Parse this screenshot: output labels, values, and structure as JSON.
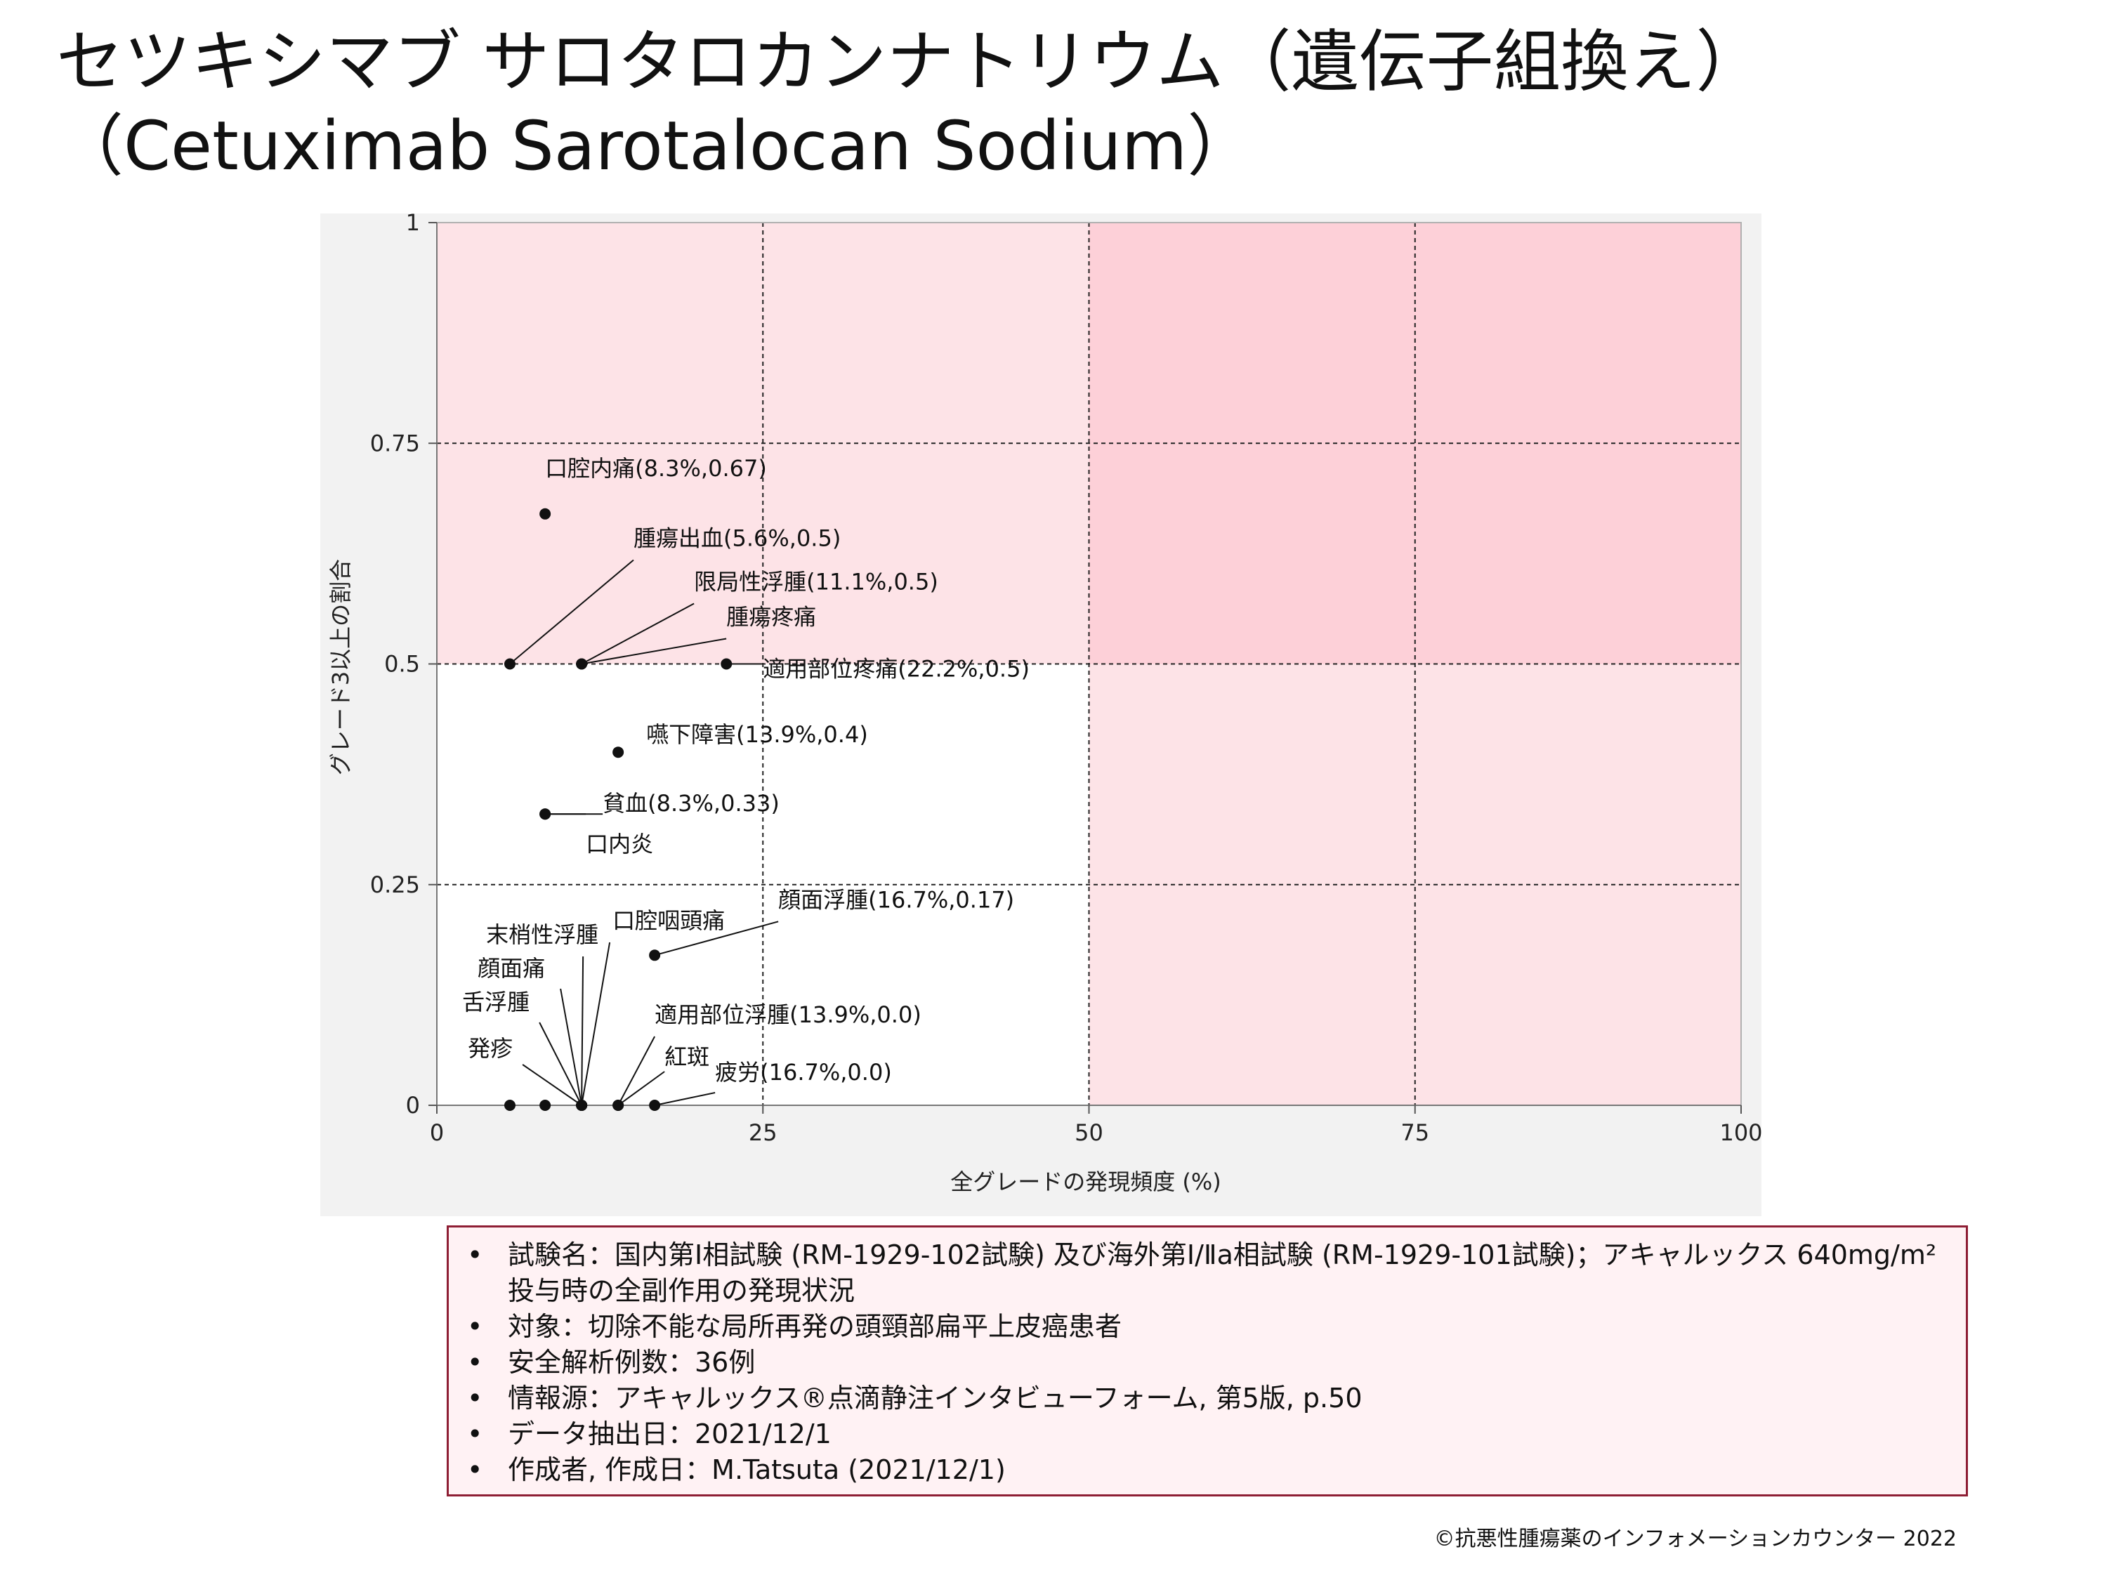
{
  "title": {
    "line1": "セツキシマブ サロタロカンナトリウム（遺伝子組換え）",
    "line2": "（Cetuximab Sarotalocan Sodium）"
  },
  "colors": {
    "plot_background": "#ffffff",
    "chart_panel": "#f2f2f2",
    "zone_light": "#fde3e7",
    "zone_dark": "#fdd0d8",
    "point": "#111111",
    "box_border": "#8e1e34",
    "box_fill": "#fff2f4"
  },
  "chart_data": {
    "type": "scatter",
    "xlabel": "全グレードの発現頻度 (%)",
    "ylabel": "グレード3以上の割合",
    "xlim": [
      0,
      100
    ],
    "ylim": [
      0,
      1
    ],
    "x_ticks": [
      {
        "value": 0,
        "label": "0"
      },
      {
        "value": 25,
        "label": "25"
      },
      {
        "value": 50,
        "label": "50"
      },
      {
        "value": 75,
        "label": "75"
      },
      {
        "value": 100,
        "label": "100"
      }
    ],
    "y_ticks": [
      {
        "value": 0,
        "label": "0"
      },
      {
        "value": 0.25,
        "label": "0.25"
      },
      {
        "value": 0.5,
        "label": "0.5"
      },
      {
        "value": 0.75,
        "label": "0.75"
      },
      {
        "value": 1,
        "label": "1"
      }
    ],
    "grid": "dashed at 25/50/75 on both axes",
    "zones": [
      {
        "x": [
          0,
          50
        ],
        "y": [
          0.5,
          1
        ],
        "color_key": "zone_light"
      },
      {
        "x": [
          50,
          100
        ],
        "y": [
          0,
          0.5
        ],
        "color_key": "zone_light"
      },
      {
        "x": [
          50,
          100
        ],
        "y": [
          0.5,
          1
        ],
        "color_key": "zone_dark"
      }
    ],
    "points": [
      {
        "name": "口腔内痛",
        "label": "口腔内痛(8.3%,0.67)",
        "x": 8.3,
        "y": 0.67
      },
      {
        "name": "腫瘍出血",
        "label": "腫瘍出血(5.6%,0.5)",
        "x": 5.6,
        "y": 0.5
      },
      {
        "name": "限局性浮腫",
        "label": "限局性浮腫(11.1%,0.5)",
        "x": 11.1,
        "y": 0.5
      },
      {
        "name": "腫瘍疼痛",
        "label": "腫瘍疼痛",
        "x": 11.1,
        "y": 0.5
      },
      {
        "name": "適用部位疼痛",
        "label": "適用部位疼痛(22.2%,0.5)",
        "x": 22.2,
        "y": 0.5
      },
      {
        "name": "嚥下障害",
        "label": "嚥下障害(13.9%,0.4)",
        "x": 13.9,
        "y": 0.4
      },
      {
        "name": "貧血",
        "label": "貧血(8.3%,0.33)",
        "x": 8.3,
        "y": 0.33
      },
      {
        "name": "口内炎",
        "label": "口内炎",
        "x": 8.3,
        "y": 0.33
      },
      {
        "name": "顔面浮腫",
        "label": "顔面浮腫(16.7%,0.17)",
        "x": 16.7,
        "y": 0.17
      },
      {
        "name": "口腔咽頭痛",
        "label": "口腔咽頭痛",
        "x": 11.1,
        "y": 0
      },
      {
        "name": "末梢性浮腫",
        "label": "末梢性浮腫",
        "x": 11.1,
        "y": 0
      },
      {
        "name": "顔面痛",
        "label": "顔面痛",
        "x": 11.1,
        "y": 0
      },
      {
        "name": "舌浮腫",
        "label": "舌浮腫",
        "x": 11.1,
        "y": 0
      },
      {
        "name": "発疹",
        "label": "発疹",
        "x": 11.1,
        "y": 0
      },
      {
        "name": "適用部位浮腫",
        "label": "適用部位浮腫(13.9%,0.0)",
        "x": 13.9,
        "y": 0
      },
      {
        "name": "紅斑",
        "label": "紅斑",
        "x": 13.9,
        "y": 0
      },
      {
        "name": "疲労",
        "label": "疲労(16.7%,0.0)",
        "x": 16.7,
        "y": 0
      },
      {
        "name": "",
        "label": "",
        "x": 5.6,
        "y": 0
      },
      {
        "name": "",
        "label": "",
        "x": 8.3,
        "y": 0
      }
    ]
  },
  "info": {
    "bullet": "•",
    "items": [
      "試験名：国内第Ⅰ相試験 (RM-1929-102試験) 及び海外第Ⅰ/Ⅱa相試験 (RM-1929-101試験)；アキャルックス 640mg/m²投与時の全副作用の発現状況",
      "対象：切除不能な局所再発の頭頸部扁平上皮癌患者",
      "安全解析例数：36例",
      "情報源：アキャルックス®点滴静注インタビューフォーム, 第5版, p.50",
      "データ抽出日：2021/12/1",
      "作成者, 作成日：M.Tatsuta (2021/12/1)"
    ]
  },
  "footer": "©抗悪性腫瘍薬のインフォメーションカウンター 2022"
}
